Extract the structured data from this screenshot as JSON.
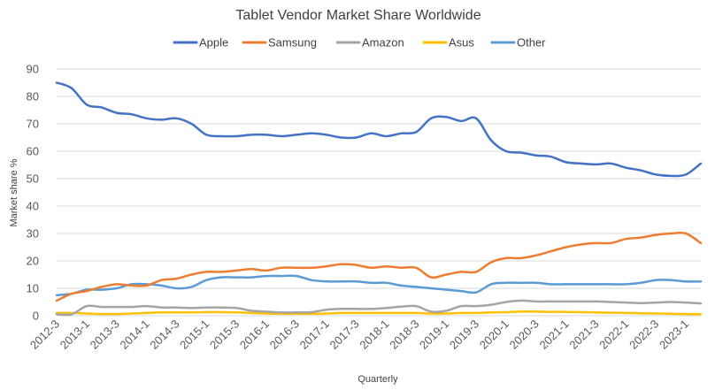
{
  "chart_data": {
    "type": "line",
    "title": "Tablet Vendor Market Share Worldwide",
    "xlabel": "Quarterly",
    "ylabel": "Market share %",
    "ylim": [
      0,
      90
    ],
    "yticks": [
      0,
      10,
      20,
      30,
      40,
      50,
      60,
      70,
      80,
      90
    ],
    "legend_position": "top",
    "grid": true,
    "categories": [
      "2012-3",
      "2012-4",
      "2013-1",
      "2013-2",
      "2013-3",
      "2013-4",
      "2014-1",
      "2014-2",
      "2014-3",
      "2014-4",
      "2015-1",
      "2015-2",
      "2015-3",
      "2015-4",
      "2016-1",
      "2016-2",
      "2016-3",
      "2016-4",
      "2017-1",
      "2017-2",
      "2017-3",
      "2017-4",
      "2018-1",
      "2018-2",
      "2018-3",
      "2018-4",
      "2019-1",
      "2019-2",
      "2019-3",
      "2019-4",
      "2020-1",
      "2020-2",
      "2020-3",
      "2020-4",
      "2021-1",
      "2021-2",
      "2021-3",
      "2021-4",
      "2022-1",
      "2022-2",
      "2022-3",
      "2022-4",
      "2023-1",
      "2023-2"
    ],
    "tick_labels": [
      "2012-3",
      "2013-1",
      "2013-3",
      "2014-1",
      "2014-3",
      "2015-1",
      "2015-3",
      "2016-1",
      "2016-3",
      "2017-1",
      "2017-3",
      "2018-1",
      "2018-3",
      "2019-1",
      "2019-3",
      "2020-1",
      "2020-3",
      "2021-1",
      "2021-3",
      "2022-1",
      "2022-3",
      "2023-1"
    ],
    "series": [
      {
        "name": "Apple",
        "color": "#4472C4",
        "values": [
          85,
          83,
          77,
          76,
          74,
          73.5,
          72,
          71.5,
          72,
          70,
          66,
          65.5,
          65.5,
          66,
          66,
          65.5,
          66,
          66.5,
          66,
          65,
          65,
          66.5,
          65.5,
          66.5,
          67,
          72,
          72.5,
          71,
          72,
          64,
          60,
          59.5,
          58.5,
          58,
          56,
          55.5,
          55.2,
          55.5,
          54,
          53,
          51.5,
          51,
          51.5,
          55.5
        ]
      },
      {
        "name": "Samsung",
        "color": "#ED7D31",
        "values": [
          5.5,
          8,
          9,
          10.5,
          11.5,
          11,
          11,
          13,
          13.5,
          15,
          16,
          16,
          16.5,
          17,
          16.5,
          17.5,
          17.5,
          17.5,
          18,
          18.8,
          18.5,
          17.5,
          18,
          17.5,
          17.5,
          14,
          15,
          16,
          16,
          19.5,
          21,
          21,
          22,
          23.5,
          25,
          26,
          26.5,
          26.5,
          28,
          28.5,
          29.5,
          30,
          30,
          26.5
        ]
      },
      {
        "name": "Amazon",
        "color": "#A5A5A5",
        "values": [
          0.5,
          0.5,
          3.5,
          3.2,
          3.2,
          3.2,
          3.5,
          3,
          3,
          2.8,
          3,
          3,
          2.8,
          1.8,
          1.5,
          1.2,
          1.2,
          1.3,
          2.2,
          2.5,
          2.5,
          2.5,
          2.8,
          3.3,
          3.5,
          1.5,
          1.8,
          3.5,
          3.5,
          4,
          5,
          5.5,
          5.2,
          5.2,
          5.2,
          5.2,
          5.2,
          5,
          4.8,
          4.6,
          4.8,
          5,
          4.8,
          4.5
        ]
      },
      {
        "name": "Asus",
        "color": "#FFC000",
        "values": [
          1,
          1,
          0.8,
          0.6,
          0.6,
          0.8,
          1,
          1.2,
          1.2,
          1.2,
          1.3,
          1.3,
          1.2,
          1,
          0.8,
          0.7,
          0.7,
          0.7,
          0.8,
          1,
          1,
          1,
          1,
          1,
          1,
          0.8,
          0.8,
          1,
          1,
          1.2,
          1.3,
          1.5,
          1.5,
          1.4,
          1.4,
          1.3,
          1.2,
          1.1,
          1,
          0.9,
          0.8,
          0.7,
          0.6,
          0.5
        ]
      },
      {
        "name": "Other",
        "color": "#5B9BD5",
        "values": [
          7.5,
          8,
          9.5,
          9.5,
          10,
          11.5,
          11.5,
          11,
          10,
          10.5,
          13,
          14,
          14,
          14,
          14.5,
          14.5,
          14.5,
          13,
          12.5,
          12.5,
          12.5,
          12,
          12,
          11,
          10.5,
          10,
          9.5,
          9,
          8.5,
          11.5,
          12,
          12,
          12,
          11.5,
          11.5,
          11.5,
          11.5,
          11.5,
          11.5,
          12,
          13,
          13,
          12.5,
          12.5
        ]
      }
    ]
  }
}
